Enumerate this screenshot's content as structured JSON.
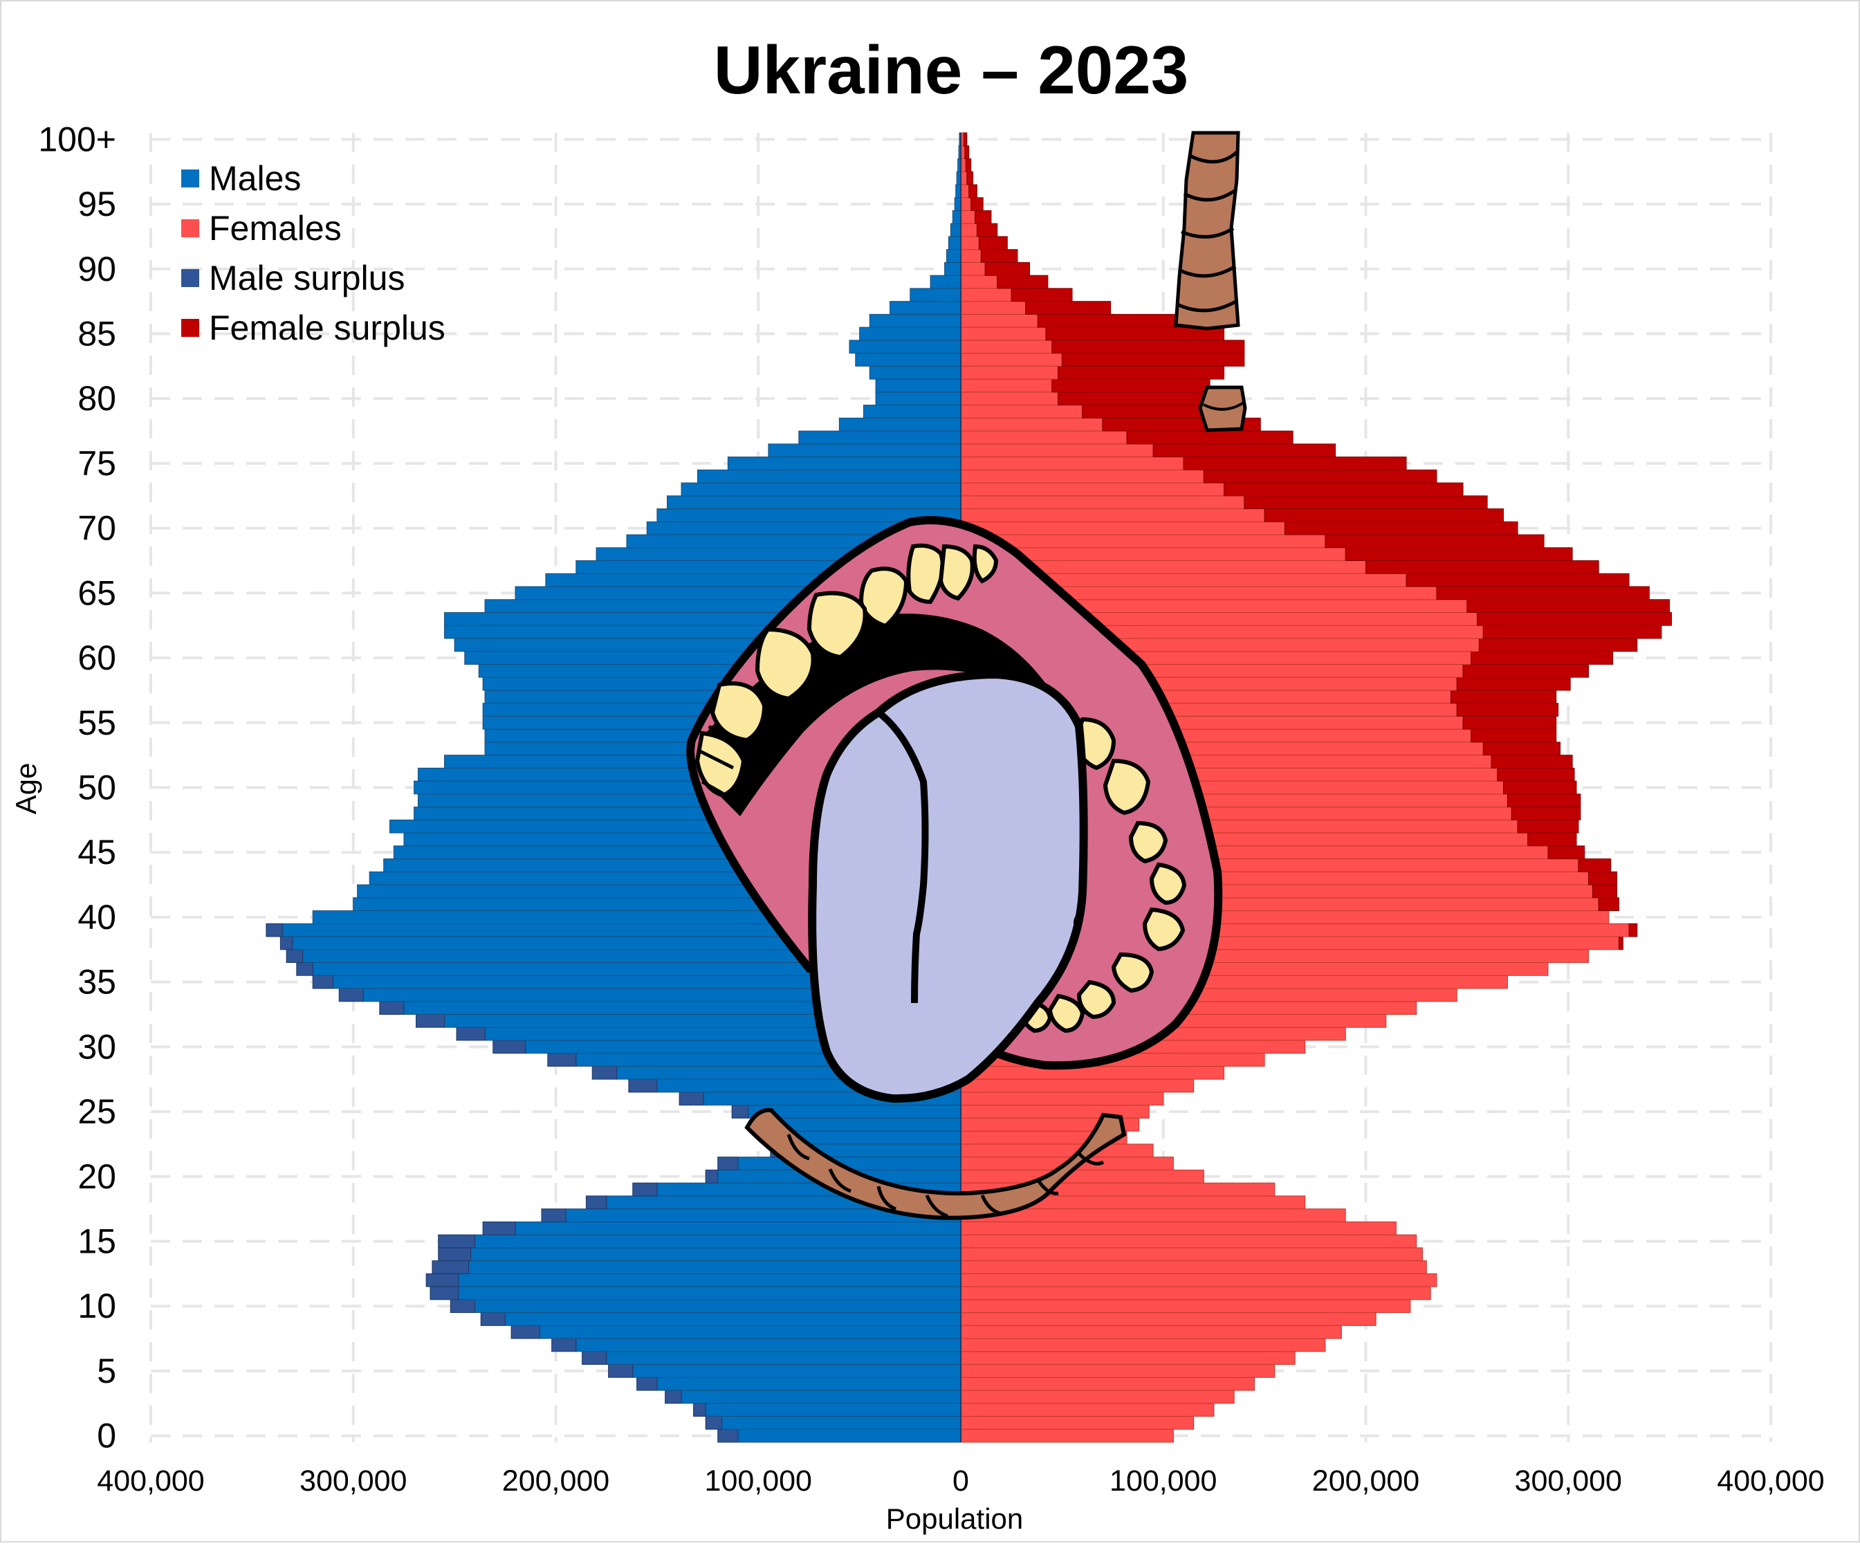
{
  "chart_data": {
    "type": "bar",
    "orientation": "horizontal-pyramid",
    "title": "Ukraine – 2023",
    "xlabel": "Population",
    "ylabel": "Age",
    "xlim": [
      -400000,
      400000
    ],
    "x_ticks": [
      {
        "value": -400000,
        "label": "400,000"
      },
      {
        "value": -300000,
        "label": "300,000"
      },
      {
        "value": -200000,
        "label": "200,000"
      },
      {
        "value": -100000,
        "label": "100,000"
      },
      {
        "value": 0,
        "label": "0"
      },
      {
        "value": 100000,
        "label": "100,000"
      },
      {
        "value": 200000,
        "label": "200,000"
      },
      {
        "value": 300000,
        "label": "300,000"
      },
      {
        "value": 400000,
        "label": "400,000"
      }
    ],
    "y_ticks": [
      {
        "age": 0,
        "label": "0"
      },
      {
        "age": 5,
        "label": "5"
      },
      {
        "age": 10,
        "label": "10"
      },
      {
        "age": 15,
        "label": "15"
      },
      {
        "age": 20,
        "label": "20"
      },
      {
        "age": 25,
        "label": "25"
      },
      {
        "age": 30,
        "label": "30"
      },
      {
        "age": 35,
        "label": "35"
      },
      {
        "age": 40,
        "label": "40"
      },
      {
        "age": 45,
        "label": "45"
      },
      {
        "age": 50,
        "label": "50"
      },
      {
        "age": 55,
        "label": "55"
      },
      {
        "age": 60,
        "label": "60"
      },
      {
        "age": 65,
        "label": "65"
      },
      {
        "age": 70,
        "label": "70"
      },
      {
        "age": 75,
        "label": "75"
      },
      {
        "age": 80,
        "label": "80"
      },
      {
        "age": 85,
        "label": "85"
      },
      {
        "age": 90,
        "label": "90"
      },
      {
        "age": 95,
        "label": "95"
      },
      {
        "age": 100,
        "label": "100+"
      }
    ],
    "grid": true,
    "legend_position": "top-left",
    "legend": [
      {
        "name": "Males",
        "color": "#0070C0"
      },
      {
        "name": "Females",
        "color": "#FF4F4F"
      },
      {
        "name": "Male surplus",
        "color": "#2F5597"
      },
      {
        "name": "Female surplus",
        "color": "#C00000"
      }
    ],
    "ages": [
      0,
      1,
      2,
      3,
      4,
      5,
      6,
      7,
      8,
      9,
      10,
      11,
      12,
      13,
      14,
      15,
      16,
      17,
      18,
      19,
      20,
      21,
      22,
      23,
      24,
      25,
      26,
      27,
      28,
      29,
      30,
      31,
      32,
      33,
      34,
      35,
      36,
      37,
      38,
      39,
      40,
      41,
      42,
      43,
      44,
      45,
      46,
      47,
      48,
      49,
      50,
      51,
      52,
      53,
      54,
      55,
      56,
      57,
      58,
      59,
      60,
      61,
      62,
      63,
      64,
      65,
      66,
      67,
      68,
      69,
      70,
      71,
      72,
      73,
      74,
      75,
      76,
      77,
      78,
      79,
      80,
      81,
      82,
      83,
      84,
      85,
      86,
      87,
      88,
      89,
      90,
      91,
      92,
      93,
      94,
      95,
      96,
      97,
      98,
      99,
      100
    ],
    "males": [
      110000,
      118000,
      126000,
      138000,
      150000,
      162000,
      175000,
      190000,
      208000,
      225000,
      240000,
      248000,
      248000,
      243000,
      242000,
      240000,
      220000,
      195000,
      175000,
      150000,
      120000,
      110000,
      90000,
      85000,
      92000,
      105000,
      127000,
      150000,
      170000,
      190000,
      215000,
      235000,
      255000,
      275000,
      295000,
      310000,
      320000,
      325000,
      330000,
      335000,
      320000,
      300000,
      298000,
      292000,
      285000,
      280000,
      275000,
      282000,
      270000,
      268000,
      270000,
      268000,
      255000,
      235000,
      235000,
      236000,
      236000,
      235000,
      236000,
      238000,
      245000,
      250000,
      255000,
      255000,
      235000,
      220000,
      205000,
      190000,
      180000,
      165000,
      155000,
      150000,
      145000,
      138000,
      130000,
      115000,
      95000,
      80000,
      60000,
      48000,
      42000,
      42000,
      45000,
      52000,
      55000,
      50000,
      45000,
      35000,
      25000,
      15000,
      8000,
      7000,
      6000,
      5000,
      4000,
      3000,
      2500,
      2000,
      1500,
      1000,
      700
    ],
    "females": [
      105000,
      115000,
      125000,
      135000,
      145000,
      155000,
      165000,
      180000,
      188000,
      205000,
      222000,
      232000,
      235000,
      230000,
      228000,
      225000,
      215000,
      190000,
      170000,
      155000,
      120000,
      105000,
      95000,
      82000,
      88000,
      93000,
      100000,
      115000,
      130000,
      150000,
      170000,
      190000,
      210000,
      225000,
      245000,
      270000,
      290000,
      310000,
      325000,
      330000,
      320000,
      315000,
      312000,
      310000,
      305000,
      290000,
      280000,
      275000,
      272000,
      270000,
      268000,
      265000,
      262000,
      258000,
      252000,
      248000,
      245000,
      242000,
      245000,
      248000,
      252000,
      256000,
      258000,
      255000,
      250000,
      235000,
      220000,
      200000,
      190000,
      180000,
      160000,
      150000,
      140000,
      130000,
      120000,
      110000,
      95000,
      82000,
      70000,
      60000,
      48000,
      45000,
      48000,
      50000,
      45000,
      42000,
      38000,
      32000,
      25000,
      18000,
      12000,
      10000,
      9000,
      8000,
      7000,
      5000,
      4000,
      3000,
      2500,
      2000,
      1500
    ],
    "male_surplus": [
      10000,
      8000,
      6000,
      8000,
      10000,
      12000,
      12000,
      12000,
      14000,
      12000,
      12000,
      14000,
      16000,
      18000,
      16000,
      18000,
      16000,
      12000,
      10000,
      12000,
      6000,
      10000,
      4000,
      4000,
      6000,
      8000,
      12000,
      14000,
      12000,
      14000,
      16000,
      14000,
      14000,
      12000,
      12000,
      10000,
      8000,
      8000,
      6000,
      8000,
      0,
      0,
      0,
      0,
      0,
      0,
      0,
      0,
      0,
      0,
      0,
      0,
      0,
      0,
      0,
      0,
      0,
      0,
      0,
      0,
      0,
      0,
      0,
      0,
      0,
      0,
      0,
      0,
      0,
      0,
      0,
      0,
      0,
      0,
      0,
      0,
      0,
      0,
      0,
      0,
      0,
      0,
      0,
      0,
      0,
      0,
      0,
      0,
      0,
      0,
      0,
      0,
      0,
      0,
      0,
      0,
      0,
      0,
      0,
      0,
      0
    ],
    "female_surplus": [
      0,
      0,
      0,
      0,
      0,
      0,
      0,
      0,
      0,
      0,
      0,
      0,
      0,
      0,
      0,
      0,
      0,
      0,
      0,
      0,
      0,
      0,
      0,
      0,
      0,
      0,
      0,
      0,
      0,
      0,
      0,
      0,
      0,
      0,
      0,
      0,
      0,
      0,
      2000,
      4000,
      0,
      10000,
      12000,
      14000,
      16000,
      18000,
      24000,
      30000,
      34000,
      36000,
      36000,
      38000,
      40000,
      38000,
      42000,
      46000,
      50000,
      52000,
      56000,
      62000,
      70000,
      78000,
      88000,
      96000,
      100000,
      105000,
      110000,
      115000,
      112000,
      108000,
      115000,
      118000,
      120000,
      118000,
      115000,
      110000,
      90000,
      82000,
      78000,
      75000,
      72000,
      78000,
      82000,
      90000,
      95000,
      88000,
      70000,
      42000,
      30000,
      25000,
      22000,
      18000,
      14000,
      10000,
      8000,
      6000,
      4000,
      3000,
      2500,
      2000,
      1500
    ]
  },
  "decorations": {
    "overlay": "cartoon-mouth-with-tongue",
    "mouth_color": "#D86A8C",
    "tongue_color": "#BCC0E6",
    "teeth_color": "#FBE9A2",
    "rope_color": "#B8785A"
  }
}
